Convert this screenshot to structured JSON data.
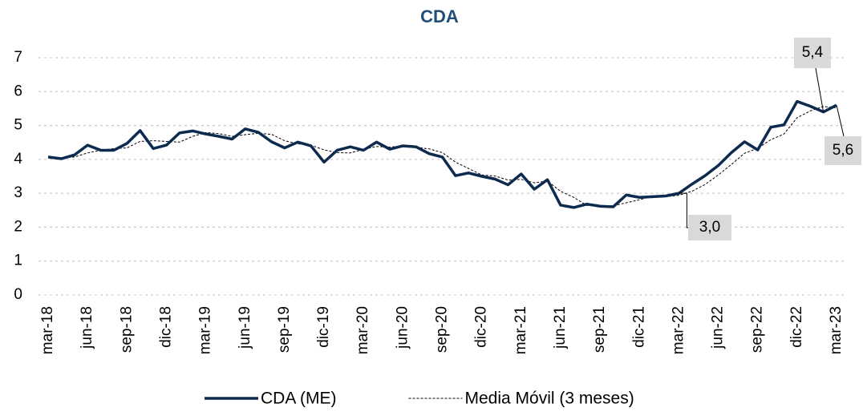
{
  "chart_data": {
    "type": "line",
    "title": "CDA",
    "categories": [
      "mar-18",
      null,
      null,
      "jun-18",
      null,
      null,
      "sep-18",
      null,
      null,
      "dic-18",
      null,
      null,
      "mar-19",
      null,
      null,
      "jun-19",
      null,
      null,
      "sep-19",
      null,
      null,
      "dic-19",
      null,
      null,
      "mar-20",
      null,
      null,
      "jun-20",
      null,
      null,
      "sep-20",
      null,
      null,
      "dic-20",
      null,
      null,
      "mar-21",
      null,
      null,
      "jun-21",
      null,
      null,
      "sep-21",
      null,
      null,
      "dic-21",
      null,
      null,
      "mar-22",
      null,
      null,
      "jun-22",
      null,
      null,
      "sep-22",
      null,
      null,
      "dic-22",
      null,
      null,
      "mar-23"
    ],
    "series": [
      {
        "name": "CDA (ME)",
        "color": "#0d2a4f",
        "values": [
          4.07,
          4.02,
          4.13,
          4.42,
          4.27,
          4.27,
          4.47,
          4.85,
          4.32,
          4.42,
          4.78,
          4.84,
          4.75,
          4.68,
          4.6,
          4.9,
          4.8,
          4.52,
          4.34,
          4.51,
          4.4,
          3.92,
          4.27,
          4.37,
          4.27,
          4.51,
          4.3,
          4.4,
          4.37,
          4.17,
          4.07,
          3.52,
          3.6,
          3.5,
          3.42,
          3.25,
          3.57,
          3.12,
          3.4,
          2.65,
          2.58,
          2.68,
          2.62,
          2.6,
          2.95,
          2.88,
          2.9,
          2.92,
          3.0,
          3.27,
          3.52,
          3.82,
          4.2,
          4.52,
          4.28,
          4.95,
          5.02,
          5.71,
          5.57,
          5.4,
          5.6
        ],
        "value_labels": [
          null,
          null,
          null,
          null,
          null,
          null,
          null,
          null,
          null,
          null,
          null,
          null,
          null,
          null,
          null,
          null,
          null,
          null,
          null,
          null,
          null,
          null,
          null,
          null,
          null,
          null,
          null,
          null,
          null,
          null,
          null,
          null,
          null,
          null,
          null,
          null,
          null,
          null,
          null,
          null,
          null,
          null,
          null,
          null,
          null,
          null,
          null,
          null,
          "3,0",
          null,
          null,
          null,
          null,
          null,
          null,
          null,
          null,
          null,
          null,
          "5,4",
          "5,6"
        ]
      },
      {
        "name": "Media Móvil (3 meses)",
        "color": "#000000",
        "dashed": true,
        "values": [
          4.07,
          4.05,
          4.07,
          4.19,
          4.27,
          4.32,
          4.34,
          4.53,
          4.55,
          4.53,
          4.51,
          4.68,
          4.79,
          4.76,
          4.68,
          4.73,
          4.77,
          4.74,
          4.55,
          4.46,
          4.42,
          4.28,
          4.2,
          4.19,
          4.3,
          4.38,
          4.36,
          4.4,
          4.36,
          4.31,
          4.2,
          3.92,
          3.73,
          3.54,
          3.51,
          3.39,
          3.41,
          3.31,
          3.36,
          3.06,
          2.88,
          2.64,
          2.63,
          2.63,
          2.72,
          2.81,
          2.91,
          2.9,
          2.94,
          3.06,
          3.26,
          3.54,
          3.85,
          4.18,
          4.33,
          4.58,
          4.75,
          5.23,
          5.43,
          5.56,
          5.52
        ]
      }
    ],
    "ylim": [
      0,
      7
    ],
    "yticks": [
      0,
      1,
      2,
      3,
      4,
      5,
      6,
      7
    ],
    "grid": true,
    "legend": "bottom"
  }
}
